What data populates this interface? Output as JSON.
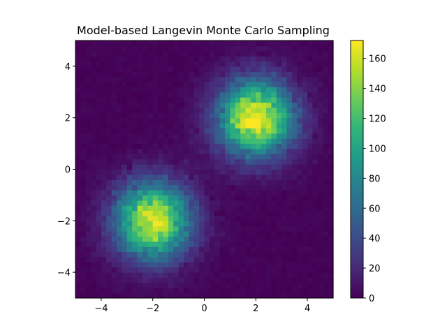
{
  "chart_data": {
    "type": "heatmap",
    "title": "Model-based Langevin Monte Carlo Sampling",
    "xlabel": "",
    "ylabel": "",
    "xlim": [
      -5,
      5
    ],
    "ylim": [
      -5,
      5
    ],
    "bins": 50,
    "x_ticks": [
      {
        "value": -4,
        "label": "−4"
      },
      {
        "value": -2,
        "label": "−2"
      },
      {
        "value": 0,
        "label": "0"
      },
      {
        "value": 2,
        "label": "2"
      },
      {
        "value": 4,
        "label": "4"
      }
    ],
    "y_ticks": [
      {
        "value": 4,
        "label": "4"
      },
      {
        "value": 2,
        "label": "2"
      },
      {
        "value": 0,
        "label": "0"
      },
      {
        "value": -2,
        "label": "−2"
      },
      {
        "value": -4,
        "label": "−4"
      }
    ],
    "colorbar": {
      "colormap": "viridis",
      "range": [
        0,
        172
      ],
      "ticks": [
        {
          "value": 0,
          "label": "0"
        },
        {
          "value": 20,
          "label": "20"
        },
        {
          "value": 40,
          "label": "40"
        },
        {
          "value": 60,
          "label": "60"
        },
        {
          "value": 80,
          "label": "80"
        },
        {
          "value": 100,
          "label": "100"
        },
        {
          "value": 120,
          "label": "120"
        },
        {
          "value": 140,
          "label": "140"
        },
        {
          "value": 160,
          "label": "160"
        }
      ]
    },
    "modes": [
      {
        "center": [
          2,
          2
        ],
        "peak_count": 172
      },
      {
        "center": [
          -2,
          -2
        ],
        "peak_count": 165
      }
    ],
    "colormap_stops": [
      "#440154",
      "#482878",
      "#3e4989",
      "#31688e",
      "#26828e",
      "#1f9e89",
      "#35b779",
      "#6ece58",
      "#b5de2b",
      "#fde725"
    ],
    "grid": false,
    "legend": "none"
  }
}
